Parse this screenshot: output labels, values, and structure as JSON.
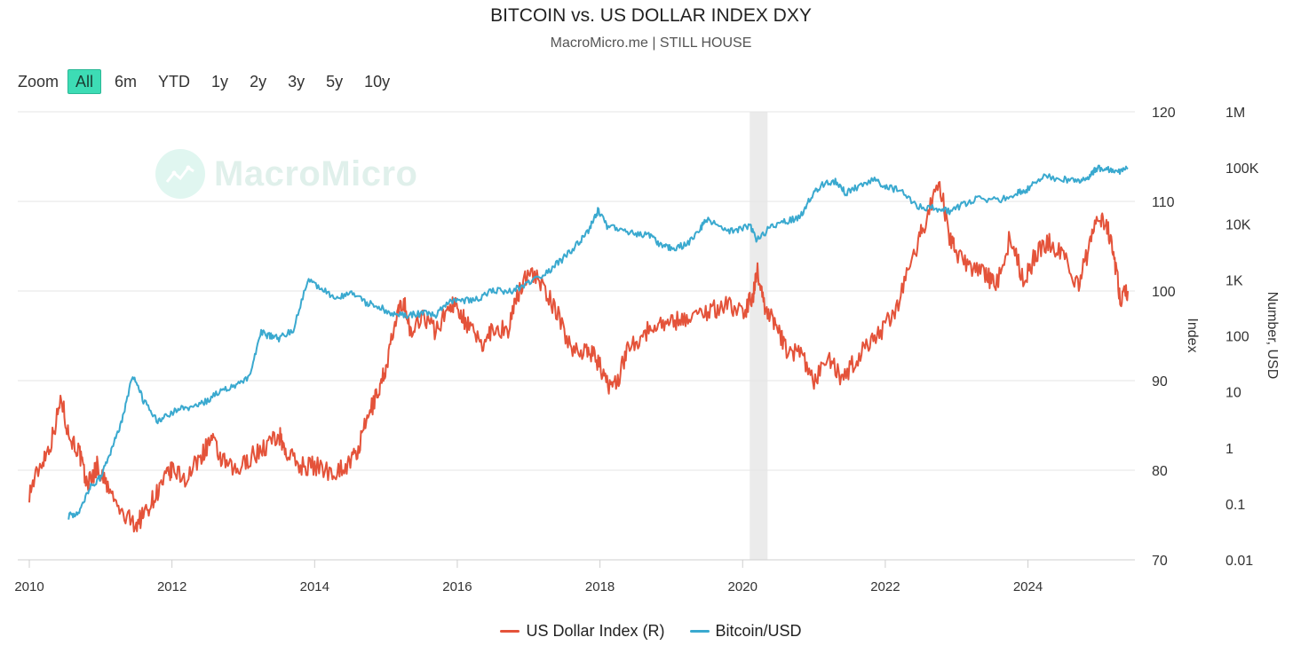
{
  "header": {
    "title": "BITCOIN vs. US DOLLAR INDEX DXY",
    "subtitle": "MacroMicro.me | STILL HOUSE"
  },
  "zoom": {
    "label": "Zoom",
    "options": [
      "All",
      "6m",
      "YTD",
      "1y",
      "2y",
      "3y",
      "5y",
      "10y"
    ],
    "selected": "All"
  },
  "watermark": {
    "text": "MacroMicro",
    "icon": "macromicro-logo-icon"
  },
  "colors": {
    "dxy": "#e4533a",
    "btc": "#3aa9cf",
    "grid": "#e6e6e6",
    "recession": "#ebebeb"
  },
  "chart_data": {
    "type": "line",
    "x_axis": {
      "type": "datetime",
      "range": [
        2010.0,
        2025.4
      ],
      "ticks": [
        "2010",
        "2012",
        "2014",
        "2016",
        "2018",
        "2020",
        "2022",
        "2024"
      ]
    },
    "y_axis_index": {
      "title": "Index",
      "range": [
        70,
        120
      ],
      "ticks": [
        "70",
        "80",
        "90",
        "100",
        "110",
        "120"
      ]
    },
    "y_axis_usd": {
      "title": "Number, USD",
      "scale": "log",
      "range": [
        0.01,
        1000000
      ],
      "ticks": [
        "0.01",
        "0.1",
        "1",
        "10",
        "100",
        "1K",
        "10K",
        "100K",
        "1M"
      ]
    },
    "shaded_periods": [
      {
        "from": 2020.1,
        "to": 2020.35
      }
    ],
    "legend_position": "bottom-center",
    "grid": true,
    "series": [
      {
        "name": "US Dollar Index (R)",
        "axis": "index",
        "color": "#e4533a",
        "points": [
          [
            2010.0,
            77.5
          ],
          [
            2010.15,
            80.5
          ],
          [
            2010.3,
            83.0
          ],
          [
            2010.45,
            88.0
          ],
          [
            2010.55,
            84.0
          ],
          [
            2010.7,
            82.0
          ],
          [
            2010.8,
            78.5
          ],
          [
            2010.9,
            79.5
          ],
          [
            2010.95,
            80.5
          ],
          [
            2011.1,
            78.0
          ],
          [
            2011.3,
            75.0
          ],
          [
            2011.5,
            74.0
          ],
          [
            2011.6,
            75.0
          ],
          [
            2011.75,
            77.0
          ],
          [
            2011.9,
            79.0
          ],
          [
            2012.0,
            80.0
          ],
          [
            2012.2,
            79.0
          ],
          [
            2012.4,
            81.5
          ],
          [
            2012.55,
            83.5
          ],
          [
            2012.7,
            81.0
          ],
          [
            2012.9,
            79.7
          ],
          [
            2013.1,
            81.5
          ],
          [
            2013.3,
            82.5
          ],
          [
            2013.5,
            84.0
          ],
          [
            2013.6,
            82.0
          ],
          [
            2013.8,
            80.5
          ],
          [
            2014.0,
            80.5
          ],
          [
            2014.25,
            79.8
          ],
          [
            2014.45,
            80.5
          ],
          [
            2014.6,
            82.0
          ],
          [
            2014.75,
            86.0
          ],
          [
            2014.9,
            89.0
          ],
          [
            2015.0,
            91.5
          ],
          [
            2015.15,
            97.0
          ],
          [
            2015.25,
            99.0
          ],
          [
            2015.35,
            95.0
          ],
          [
            2015.5,
            97.5
          ],
          [
            2015.7,
            95.5
          ],
          [
            2015.9,
            98.5
          ],
          [
            2016.0,
            98.5
          ],
          [
            2016.15,
            96.0
          ],
          [
            2016.35,
            94.0
          ],
          [
            2016.5,
            96.0
          ],
          [
            2016.7,
            95.5
          ],
          [
            2016.85,
            99.5
          ],
          [
            2017.0,
            102.5
          ],
          [
            2017.2,
            100.5
          ],
          [
            2017.4,
            97.5
          ],
          [
            2017.6,
            93.5
          ],
          [
            2017.8,
            93.5
          ],
          [
            2017.95,
            92.5
          ],
          [
            2018.1,
            89.5
          ],
          [
            2018.25,
            90.0
          ],
          [
            2018.4,
            94.0
          ],
          [
            2018.6,
            95.0
          ],
          [
            2018.8,
            96.5
          ],
          [
            2019.0,
            96.5
          ],
          [
            2019.2,
            97.0
          ],
          [
            2019.4,
            97.5
          ],
          [
            2019.6,
            98.0
          ],
          [
            2019.8,
            98.5
          ],
          [
            2020.0,
            97.5
          ],
          [
            2020.15,
            99.5
          ],
          [
            2020.2,
            102.5
          ],
          [
            2020.3,
            98.5
          ],
          [
            2020.45,
            96.5
          ],
          [
            2020.6,
            93.5
          ],
          [
            2020.8,
            93.0
          ],
          [
            2021.0,
            90.0
          ],
          [
            2021.2,
            92.5
          ],
          [
            2021.4,
            90.0
          ],
          [
            2021.6,
            92.5
          ],
          [
            2021.8,
            94.5
          ],
          [
            2022.0,
            96.0
          ],
          [
            2022.2,
            99.0
          ],
          [
            2022.4,
            104.0
          ],
          [
            2022.55,
            107.5
          ],
          [
            2022.75,
            112.5
          ],
          [
            2022.9,
            106.0
          ],
          [
            2023.0,
            104.0
          ],
          [
            2023.2,
            102.5
          ],
          [
            2023.4,
            102.0
          ],
          [
            2023.55,
            100.5
          ],
          [
            2023.75,
            106.0
          ],
          [
            2023.95,
            101.0
          ],
          [
            2024.1,
            104.0
          ],
          [
            2024.3,
            105.5
          ],
          [
            2024.5,
            104.0
          ],
          [
            2024.7,
            100.5
          ],
          [
            2024.85,
            104.5
          ],
          [
            2025.0,
            108.5
          ],
          [
            2025.1,
            107.5
          ],
          [
            2025.2,
            104.0
          ],
          [
            2025.3,
            99.0
          ],
          [
            2025.4,
            100.0
          ]
        ]
      },
      {
        "name": "Bitcoin/USD",
        "axis": "usd",
        "color": "#3aa9cf",
        "points": [
          [
            2010.55,
            0.06
          ],
          [
            2010.7,
            0.07
          ],
          [
            2010.85,
            0.2
          ],
          [
            2011.0,
            0.3
          ],
          [
            2011.15,
            0.9
          ],
          [
            2011.3,
            3.0
          ],
          [
            2011.45,
            20.0
          ],
          [
            2011.6,
            7.0
          ],
          [
            2011.8,
            3.0
          ],
          [
            2011.95,
            4.0
          ],
          [
            2012.1,
            5.0
          ],
          [
            2012.3,
            5.0
          ],
          [
            2012.5,
            7.0
          ],
          [
            2012.7,
            11.0
          ],
          [
            2012.9,
            13.0
          ],
          [
            2013.1,
            20.0
          ],
          [
            2013.25,
            120.0
          ],
          [
            2013.35,
            100.0
          ],
          [
            2013.5,
            90.0
          ],
          [
            2013.7,
            130.0
          ],
          [
            2013.9,
            1000.0
          ],
          [
            2014.1,
            700.0
          ],
          [
            2014.3,
            450.0
          ],
          [
            2014.5,
            600.0
          ],
          [
            2014.7,
            400.0
          ],
          [
            2014.9,
            330.0
          ],
          [
            2015.1,
            240.0
          ],
          [
            2015.3,
            230.0
          ],
          [
            2015.5,
            250.0
          ],
          [
            2015.7,
            240.0
          ],
          [
            2015.9,
            400.0
          ],
          [
            2016.1,
            420.0
          ],
          [
            2016.3,
            450.0
          ],
          [
            2016.5,
            650.0
          ],
          [
            2016.7,
            600.0
          ],
          [
            2016.9,
            750.0
          ],
          [
            2017.1,
            1000.0
          ],
          [
            2017.3,
            1500.0
          ],
          [
            2017.5,
            2500.0
          ],
          [
            2017.7,
            4500.0
          ],
          [
            2017.85,
            8000.0
          ],
          [
            2017.97,
            17000.0
          ],
          [
            2018.1,
            9000.0
          ],
          [
            2018.3,
            8000.0
          ],
          [
            2018.5,
            6500.0
          ],
          [
            2018.7,
            6400.0
          ],
          [
            2018.85,
            4000.0
          ],
          [
            2019.0,
            3700.0
          ],
          [
            2019.2,
            4100.0
          ],
          [
            2019.4,
            8000.0
          ],
          [
            2019.5,
            12000.0
          ],
          [
            2019.7,
            8300.0
          ],
          [
            2019.9,
            7200.0
          ],
          [
            2020.1,
            9500.0
          ],
          [
            2020.2,
            5000.0
          ],
          [
            2020.4,
            9000.0
          ],
          [
            2020.6,
            11000.0
          ],
          [
            2020.8,
            13000.0
          ],
          [
            2020.95,
            28000.0
          ],
          [
            2021.1,
            50000.0
          ],
          [
            2021.3,
            58000.0
          ],
          [
            2021.45,
            35000.0
          ],
          [
            2021.6,
            45000.0
          ],
          [
            2021.85,
            65000.0
          ],
          [
            2022.0,
            45000.0
          ],
          [
            2022.2,
            40000.0
          ],
          [
            2022.45,
            20000.0
          ],
          [
            2022.7,
            19000.0
          ],
          [
            2022.9,
            16500.0
          ],
          [
            2023.1,
            22000.0
          ],
          [
            2023.3,
            28000.0
          ],
          [
            2023.6,
            27000.0
          ],
          [
            2023.85,
            35000.0
          ],
          [
            2024.0,
            42000.0
          ],
          [
            2024.2,
            70000.0
          ],
          [
            2024.5,
            62000.0
          ],
          [
            2024.7,
            58000.0
          ],
          [
            2024.85,
            70000.0
          ],
          [
            2024.95,
            95000.0
          ],
          [
            2025.1,
            100000.0
          ],
          [
            2025.25,
            82000.0
          ],
          [
            2025.4,
            95000.0
          ]
        ]
      }
    ]
  },
  "legend": {
    "items": [
      {
        "label": "US Dollar Index (R)",
        "color": "#e4533a"
      },
      {
        "label": "Bitcoin/USD",
        "color": "#3aa9cf"
      }
    ]
  }
}
